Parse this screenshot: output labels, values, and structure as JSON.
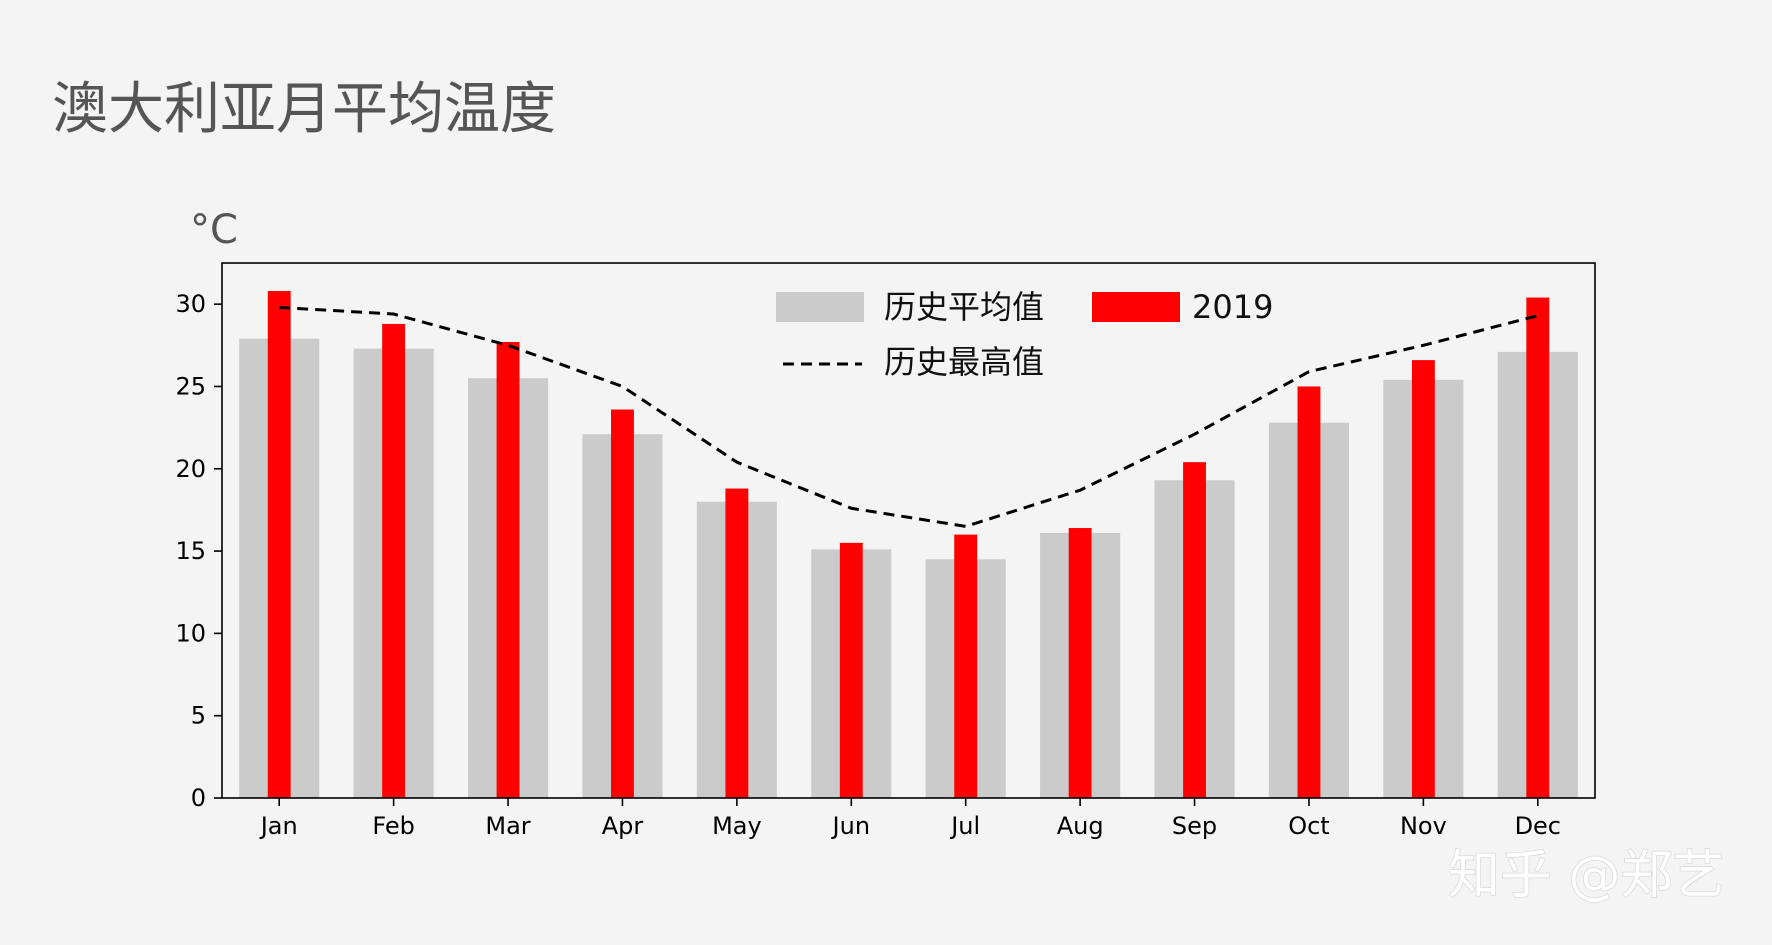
{
  "title": "澳大利亚月平均温度",
  "watermark": "知乎 @郑艺",
  "chart_data": {
    "type": "bar",
    "unit_label": "°C",
    "categories": [
      "Jan",
      "Feb",
      "Mar",
      "Apr",
      "May",
      "Jun",
      "Jul",
      "Aug",
      "Sep",
      "Oct",
      "Nov",
      "Dec"
    ],
    "series": [
      {
        "name": "历史平均值",
        "kind": "bar",
        "color": "#cbcbcb",
        "values": [
          27.9,
          27.3,
          25.5,
          22.1,
          18.0,
          15.1,
          14.5,
          16.1,
          19.3,
          22.8,
          25.4,
          27.1
        ]
      },
      {
        "name": "2019",
        "kind": "bar",
        "color": "#ff0000",
        "values": [
          30.8,
          28.8,
          27.7,
          23.6,
          18.8,
          15.5,
          16.0,
          16.4,
          20.4,
          25.0,
          26.6,
          30.4
        ]
      },
      {
        "name": "历史最高值",
        "kind": "line",
        "style": "dashed",
        "color": "#000000",
        "values": [
          29.8,
          29.4,
          27.5,
          25.0,
          20.4,
          17.6,
          16.5,
          18.7,
          22.1,
          25.9,
          27.5,
          29.3
        ]
      }
    ],
    "ylim": [
      0,
      32.5
    ],
    "yticks": [
      0,
      5,
      10,
      15,
      20,
      25,
      30
    ],
    "grid": false,
    "legend_position": "top-center"
  }
}
